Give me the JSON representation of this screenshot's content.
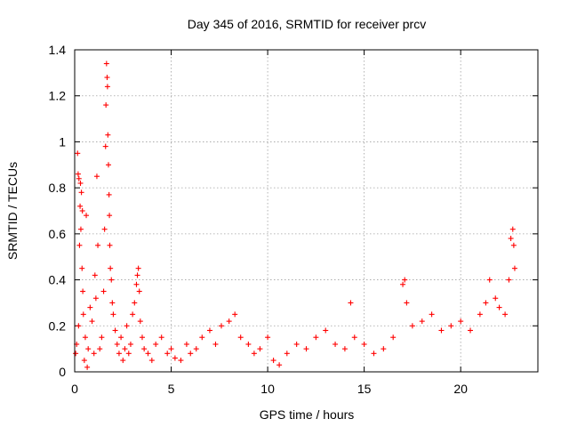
{
  "chart_data": {
    "type": "scatter",
    "title": "Day 345 of 2016, SRMTID for receiver prcv",
    "xlabel": "GPS time / hours",
    "ylabel": "SRMTID / TECUs",
    "xlim": [
      0,
      24
    ],
    "ylim": [
      0,
      1.4
    ],
    "x_ticks": [
      0,
      5,
      10,
      15,
      20
    ],
    "x_tick_labels": [
      "0",
      "5",
      "10",
      "15",
      "20"
    ],
    "y_ticks": [
      0,
      0.2,
      0.4,
      0.6,
      0.8,
      1.0,
      1.2,
      1.4
    ],
    "y_tick_labels": [
      "0",
      "0.2",
      "0.4",
      "0.6",
      "0.8",
      "1",
      "1.2",
      "1.4"
    ],
    "grid": true,
    "marker": "+",
    "color": "#ff0000",
    "series": [
      {
        "name": "SRMTID",
        "points": [
          [
            0.05,
            0.08
          ],
          [
            0.1,
            0.12
          ],
          [
            0.15,
            0.95
          ],
          [
            0.18,
            0.86
          ],
          [
            0.2,
            0.2
          ],
          [
            0.22,
            0.84
          ],
          [
            0.25,
            0.55
          ],
          [
            0.28,
            0.72
          ],
          [
            0.3,
            0.82
          ],
          [
            0.32,
            0.62
          ],
          [
            0.35,
            0.78
          ],
          [
            0.38,
            0.45
          ],
          [
            0.4,
            0.7
          ],
          [
            0.42,
            0.35
          ],
          [
            0.45,
            0.25
          ],
          [
            0.5,
            0.05
          ],
          [
            0.55,
            0.15
          ],
          [
            0.6,
            0.68
          ],
          [
            0.65,
            0.02
          ],
          [
            0.7,
            0.1
          ],
          [
            0.8,
            0.28
          ],
          [
            0.9,
            0.22
          ],
          [
            1.0,
            0.08
          ],
          [
            1.05,
            0.42
          ],
          [
            1.1,
            0.32
          ],
          [
            1.15,
            0.85
          ],
          [
            1.2,
            0.55
          ],
          [
            1.3,
            0.1
          ],
          [
            1.4,
            0.15
          ],
          [
            1.5,
            0.35
          ],
          [
            1.55,
            0.62
          ],
          [
            1.6,
            0.98
          ],
          [
            1.62,
            1.16
          ],
          [
            1.65,
            1.34
          ],
          [
            1.68,
            1.28
          ],
          [
            1.7,
            1.24
          ],
          [
            1.72,
            1.03
          ],
          [
            1.75,
            0.9
          ],
          [
            1.78,
            0.77
          ],
          [
            1.8,
            0.68
          ],
          [
            1.82,
            0.55
          ],
          [
            1.85,
            0.45
          ],
          [
            1.9,
            0.4
          ],
          [
            1.95,
            0.3
          ],
          [
            2.0,
            0.25
          ],
          [
            2.1,
            0.18
          ],
          [
            2.2,
            0.12
          ],
          [
            2.3,
            0.08
          ],
          [
            2.4,
            0.15
          ],
          [
            2.5,
            0.05
          ],
          [
            2.6,
            0.1
          ],
          [
            2.7,
            0.2
          ],
          [
            2.8,
            0.08
          ],
          [
            2.9,
            0.12
          ],
          [
            3.0,
            0.25
          ],
          [
            3.1,
            0.3
          ],
          [
            3.2,
            0.38
          ],
          [
            3.25,
            0.42
          ],
          [
            3.3,
            0.45
          ],
          [
            3.35,
            0.35
          ],
          [
            3.4,
            0.22
          ],
          [
            3.5,
            0.15
          ],
          [
            3.6,
            0.1
          ],
          [
            3.8,
            0.08
          ],
          [
            4.0,
            0.05
          ],
          [
            4.2,
            0.12
          ],
          [
            4.5,
            0.15
          ],
          [
            4.8,
            0.08
          ],
          [
            5.0,
            0.1
          ],
          [
            5.2,
            0.06
          ],
          [
            5.5,
            0.05
          ],
          [
            5.8,
            0.12
          ],
          [
            6.0,
            0.08
          ],
          [
            6.3,
            0.1
          ],
          [
            6.6,
            0.15
          ],
          [
            7.0,
            0.18
          ],
          [
            7.3,
            0.12
          ],
          [
            7.6,
            0.2
          ],
          [
            8.0,
            0.22
          ],
          [
            8.3,
            0.25
          ],
          [
            8.6,
            0.15
          ],
          [
            9.0,
            0.12
          ],
          [
            9.3,
            0.08
          ],
          [
            9.6,
            0.1
          ],
          [
            10.0,
            0.15
          ],
          [
            10.3,
            0.05
          ],
          [
            10.6,
            0.03
          ],
          [
            11.0,
            0.08
          ],
          [
            11.5,
            0.12
          ],
          [
            12.0,
            0.1
          ],
          [
            12.5,
            0.15
          ],
          [
            13.0,
            0.18
          ],
          [
            13.5,
            0.12
          ],
          [
            14.0,
            0.1
          ],
          [
            14.3,
            0.3
          ],
          [
            14.5,
            0.15
          ],
          [
            15.0,
            0.12
          ],
          [
            15.5,
            0.08
          ],
          [
            16.0,
            0.1
          ],
          [
            16.5,
            0.15
          ],
          [
            17.0,
            0.38
          ],
          [
            17.1,
            0.4
          ],
          [
            17.2,
            0.3
          ],
          [
            17.5,
            0.2
          ],
          [
            18.0,
            0.22
          ],
          [
            18.5,
            0.25
          ],
          [
            19.0,
            0.18
          ],
          [
            19.5,
            0.2
          ],
          [
            20.0,
            0.22
          ],
          [
            20.5,
            0.18
          ],
          [
            21.0,
            0.25
          ],
          [
            21.3,
            0.3
          ],
          [
            21.5,
            0.4
          ],
          [
            21.8,
            0.32
          ],
          [
            22.0,
            0.28
          ],
          [
            22.3,
            0.25
          ],
          [
            22.5,
            0.4
          ],
          [
            22.6,
            0.58
          ],
          [
            22.7,
            0.62
          ],
          [
            22.75,
            0.55
          ],
          [
            22.8,
            0.45
          ]
        ]
      }
    ]
  }
}
